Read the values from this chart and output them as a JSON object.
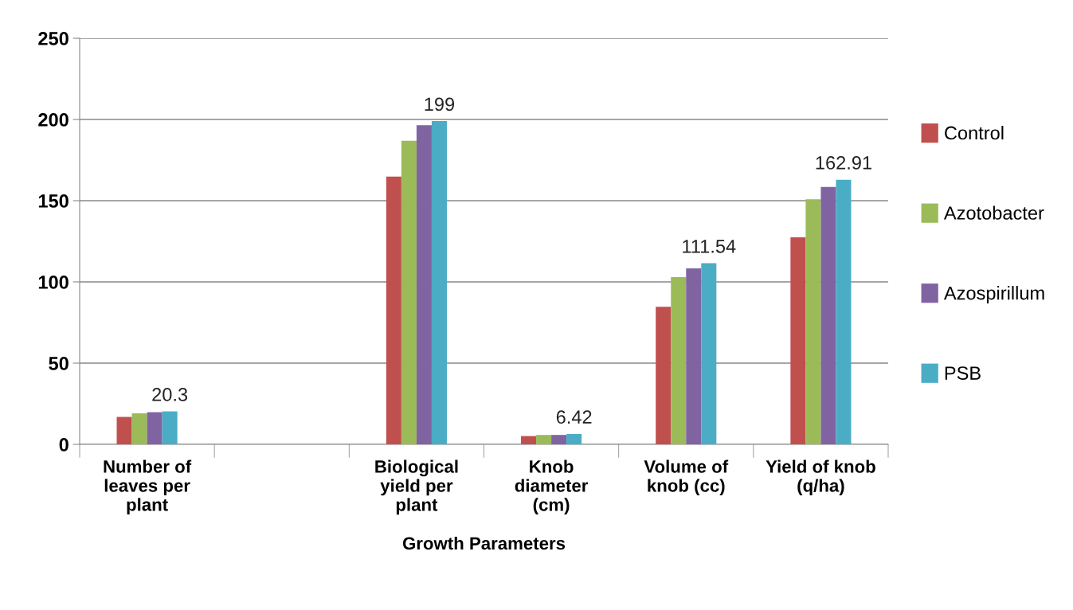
{
  "chart_data": {
    "type": "bar",
    "xlabel": "Growth Parameters",
    "categories": [
      "Number of\nleaves per\nplant",
      null,
      "Biological\nyield per\nplant",
      "Knob\ndiameter\n(cm)",
      "Volume of\nknob (cc)",
      "Yield of knob\n(q/ha)"
    ],
    "series": [
      {
        "name": "Control",
        "color": "#c0504d",
        "values": [
          16.9,
          null,
          164.8,
          5.1,
          84.7,
          127.4
        ]
      },
      {
        "name": "Azotobacter",
        "color": "#9bbb59",
        "values": [
          19.1,
          null,
          186.9,
          5.8,
          103.0,
          150.8
        ]
      },
      {
        "name": "Azospirillum",
        "color": "#8064a2",
        "values": [
          19.8,
          null,
          196.5,
          5.8,
          108.3,
          158.5
        ]
      },
      {
        "name": "PSB",
        "color": "#4bacc6",
        "values": [
          20.3,
          null,
          199,
          6.42,
          111.54,
          162.91
        ],
        "value_labels": [
          "20.3",
          null,
          "199",
          "6.42",
          "111.54",
          "162.91"
        ]
      }
    ],
    "ylim": [
      0,
      250
    ],
    "yticks": [
      0,
      50,
      100,
      150,
      200,
      250
    ],
    "grid": "y",
    "legend": "right"
  }
}
